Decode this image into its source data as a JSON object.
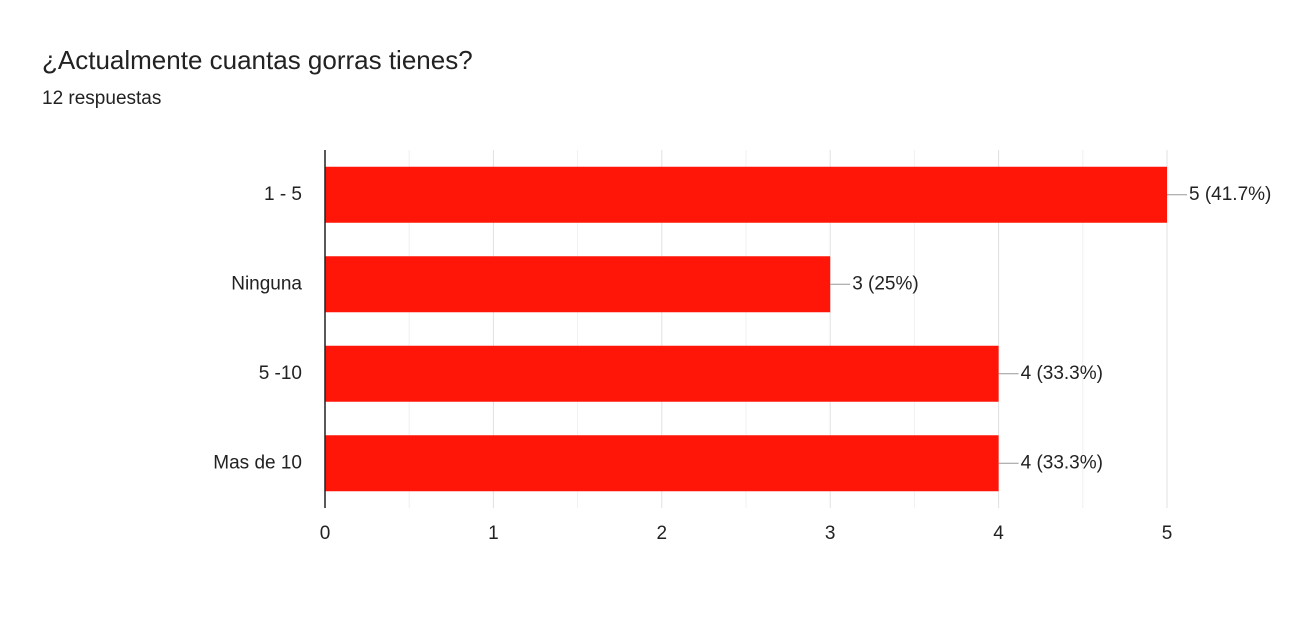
{
  "chart_data": {
    "type": "bar",
    "orientation": "horizontal",
    "title": "¿Actualmente cuantas gorras tienes?",
    "subtitle": "12 respuestas",
    "categories": [
      "1 - 5",
      "Ninguna",
      "5 -10",
      "Mas de 10"
    ],
    "values": [
      5,
      3,
      4,
      4
    ],
    "value_labels": [
      "5 (41.7%)",
      "3 (25%)",
      "4 (33.3%)",
      "4 (33.3%)"
    ],
    "color": "#ff1608",
    "xlim": [
      0,
      5
    ],
    "xticks": [
      0,
      1,
      2,
      3,
      4,
      5
    ],
    "xminorticks": [
      0.5,
      1.5,
      2.5,
      3.5,
      4.5
    ],
    "grid": true
  }
}
